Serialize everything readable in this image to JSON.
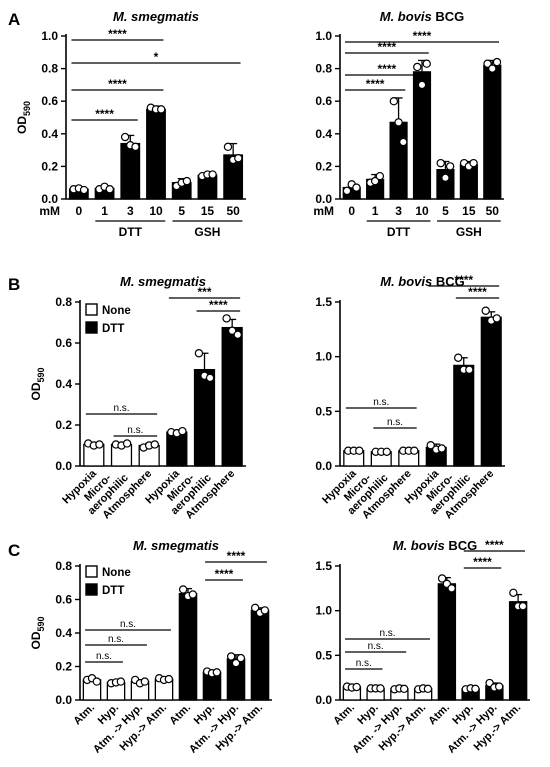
{
  "figure": {
    "panel_letters": [
      "A",
      "B",
      "C"
    ],
    "ylabel": "OD",
    "ylabel_sub": "590",
    "legend": {
      "none": "None",
      "dtt": "DTT"
    },
    "dose_unit": "mM"
  },
  "chart_data": [
    {
      "type": "bar",
      "panel": "A",
      "title_species": "M. smegmatis",
      "title_suffix": "",
      "categories": [
        "0",
        "1",
        "3",
        "10",
        "5",
        "15",
        "50"
      ],
      "groups": [
        {
          "label": "DTT",
          "indices": [
            1,
            2,
            3
          ]
        },
        {
          "label": "GSH",
          "indices": [
            4,
            5,
            6
          ]
        }
      ],
      "values": [
        0.06,
        0.065,
        0.34,
        0.55,
        0.1,
        0.145,
        0.27
      ],
      "errors": [
        0.01,
        0.015,
        0.05,
        0.02,
        0.025,
        0.01,
        0.07
      ],
      "points": [
        [
          0.06,
          0.065,
          0.055
        ],
        [
          0.06,
          0.075,
          0.06
        ],
        [
          0.38,
          0.33,
          0.32
        ],
        [
          0.56,
          0.55,
          0.55
        ],
        [
          0.08,
          0.1,
          0.11
        ],
        [
          0.14,
          0.15,
          0.15
        ],
        [
          0.32,
          0.24,
          0.25
        ]
      ],
      "fills": [
        "black",
        "black",
        "black",
        "black",
        "black",
        "black",
        "black"
      ],
      "ylim": [
        0,
        1.0
      ],
      "yticks": [
        "0.0",
        "0.2",
        "0.4",
        "0.6",
        "0.8",
        "1.0"
      ],
      "ytick_values": [
        0,
        0.2,
        0.4,
        0.6,
        0.8,
        1.0
      ],
      "significance": [
        {
          "from": 0,
          "to": 3,
          "label": "****"
        },
        {
          "from": 0,
          "to": 6,
          "label": "*"
        },
        {
          "from": 0,
          "to": 3,
          "label": "****"
        },
        {
          "from": 0,
          "to": 2,
          "label": "****"
        }
      ]
    },
    {
      "type": "bar",
      "panel": "A",
      "title_species": "M. bovis",
      "title_suffix": " BCG",
      "categories": [
        "0",
        "1",
        "3",
        "10",
        "5",
        "15",
        "50"
      ],
      "groups": [
        {
          "label": "DTT",
          "indices": [
            1,
            2,
            3
          ]
        },
        {
          "label": "GSH",
          "indices": [
            4,
            5,
            6
          ]
        }
      ],
      "values": [
        0.07,
        0.12,
        0.47,
        0.78,
        0.18,
        0.21,
        0.82
      ],
      "errors": [
        0.02,
        0.03,
        0.15,
        0.07,
        0.05,
        0.02,
        0.03
      ],
      "points": [
        [
          0.05,
          0.09,
          0.07
        ],
        [
          0.1,
          0.11,
          0.14
        ],
        [
          0.6,
          0.47,
          0.35
        ],
        [
          0.81,
          0.7,
          0.83
        ],
        [
          0.22,
          0.13,
          0.2
        ],
        [
          0.22,
          0.2,
          0.22
        ],
        [
          0.83,
          0.8,
          0.84
        ]
      ],
      "fills": [
        "black",
        "black",
        "black",
        "black",
        "black",
        "black",
        "black"
      ],
      "ylim": [
        0,
        1.0
      ],
      "yticks": [
        "0.0",
        "0.2",
        "0.4",
        "0.6",
        "0.8",
        "1.0"
      ],
      "ytick_values": [
        0,
        0.2,
        0.4,
        0.6,
        0.8,
        1.0
      ],
      "significance": [
        {
          "from": 0,
          "to": 6,
          "label": "****"
        },
        {
          "from": 0,
          "to": 3,
          "label": "****"
        },
        {
          "from": 0,
          "to": 3,
          "label": "****"
        },
        {
          "from": 0,
          "to": 2,
          "label": "****"
        }
      ]
    },
    {
      "type": "bar",
      "panel": "B",
      "title_species": "M. smegmatis",
      "title_suffix": "",
      "categories": [
        "Hypoxia",
        "Micro-aerophilic",
        "Atmosphere",
        "Hypoxia",
        "Micro-aerophilic",
        "Atmosphere"
      ],
      "values": [
        0.105,
        0.105,
        0.1,
        0.165,
        0.47,
        0.675
      ],
      "errors": [
        0.01,
        0.005,
        0.01,
        0.01,
        0.08,
        0.04
      ],
      "points": [
        [
          0.11,
          0.1,
          0.105
        ],
        [
          0.105,
          0.1,
          0.11
        ],
        [
          0.09,
          0.1,
          0.105
        ],
        [
          0.165,
          0.16,
          0.17
        ],
        [
          0.55,
          0.44,
          0.43
        ],
        [
          0.72,
          0.66,
          0.64
        ]
      ],
      "fills": [
        "white",
        "white",
        "white",
        "black",
        "black",
        "black"
      ],
      "ylim": [
        0,
        0.8
      ],
      "yticks": [
        "0.0",
        "0.2",
        "0.4",
        "0.6",
        "0.8"
      ],
      "ytick_values": [
        0,
        0.2,
        0.4,
        0.6,
        0.8
      ],
      "significance": [
        {
          "from": 3,
          "to": 5,
          "label": "***"
        },
        {
          "from": 4,
          "to": 5,
          "label": "****"
        },
        {
          "from": 0,
          "to": 2,
          "label": "n.s."
        },
        {
          "from": 1,
          "to": 2,
          "label": "n.s."
        }
      ]
    },
    {
      "type": "bar",
      "panel": "B",
      "title_species": "M. bovis",
      "title_suffix": " BCG",
      "categories": [
        "Hypoxia",
        "Micro-aerophilic",
        "Atmosphere",
        "Hypoxia",
        "Micro-aerophilic",
        "Atmosphere"
      ],
      "values": [
        0.14,
        0.13,
        0.14,
        0.17,
        0.92,
        1.36
      ],
      "errors": [
        0.01,
        0.01,
        0.01,
        0.03,
        0.07,
        0.05
      ],
      "points": [
        [
          0.14,
          0.14,
          0.14
        ],
        [
          0.13,
          0.13,
          0.13
        ],
        [
          0.14,
          0.14,
          0.14
        ],
        [
          0.19,
          0.15,
          0.16
        ],
        [
          0.99,
          0.88,
          0.88
        ],
        [
          1.42,
          1.33,
          1.35
        ]
      ],
      "fills": [
        "white",
        "white",
        "white",
        "black",
        "black",
        "black"
      ],
      "ylim": [
        0,
        1.5
      ],
      "yticks": [
        "0.0",
        "0.5",
        "1.0",
        "1.5"
      ],
      "ytick_values": [
        0,
        0.5,
        1.0,
        1.5
      ],
      "significance": [
        {
          "from": 3,
          "to": 5,
          "label": "****"
        },
        {
          "from": 4,
          "to": 5,
          "label": "****"
        },
        {
          "from": 0,
          "to": 2,
          "label": "n.s."
        },
        {
          "from": 1,
          "to": 2,
          "label": "n.s."
        }
      ]
    },
    {
      "type": "bar",
      "panel": "C",
      "title_species": "M. smegmatis",
      "title_suffix": "",
      "categories": [
        "Atm.",
        "Hyp.",
        "Atm. -> Hyp.",
        "Hyp.-> Atm.",
        "Atm.",
        "Hyp.",
        "Atm. -> Hyp.",
        "Hyp.-> Atm."
      ],
      "values": [
        0.12,
        0.105,
        0.11,
        0.125,
        0.635,
        0.165,
        0.245,
        0.535
      ],
      "errors": [
        0.01,
        0.005,
        0.01,
        0.01,
        0.03,
        0.01,
        0.025,
        0.015
      ],
      "points": [
        [
          0.12,
          0.13,
          0.11
        ],
        [
          0.1,
          0.105,
          0.11
        ],
        [
          0.12,
          0.1,
          0.11
        ],
        [
          0.13,
          0.12,
          0.125
        ],
        [
          0.66,
          0.62,
          0.63
        ],
        [
          0.17,
          0.16,
          0.165
        ],
        [
          0.26,
          0.22,
          0.25
        ],
        [
          0.55,
          0.52,
          0.535
        ]
      ],
      "fills": [
        "white",
        "white",
        "white",
        "white",
        "black",
        "black",
        "black",
        "black"
      ],
      "ylim": [
        0,
        0.8
      ],
      "yticks": [
        "0.0",
        "0.2",
        "0.4",
        "0.6",
        "0.8"
      ],
      "ytick_values": [
        0,
        0.2,
        0.4,
        0.6,
        0.8
      ],
      "significance": [
        {
          "from": 5,
          "to": 7,
          "label": "****"
        },
        {
          "from": 5,
          "to": 6,
          "label": "****"
        },
        {
          "from": 0,
          "to": 3,
          "label": "n.s."
        },
        {
          "from": 0,
          "to": 2,
          "label": "n.s."
        },
        {
          "from": 0,
          "to": 1,
          "label": "n.s."
        }
      ]
    },
    {
      "type": "bar",
      "panel": "C",
      "title_species": "M. bovis",
      "title_suffix": " BCG",
      "categories": [
        "Atm.",
        "Hyp.",
        "Atm. -> Hyp.",
        "Hyp.-> Atm.",
        "Atm.",
        "Hyp.",
        "Atm. -> Hyp.",
        "Hyp.-> Atm."
      ],
      "values": [
        0.145,
        0.13,
        0.125,
        0.125,
        1.3,
        0.125,
        0.16,
        1.1
      ],
      "errors": [
        0.01,
        0.01,
        0.01,
        0.01,
        0.07,
        0.01,
        0.03,
        0.08
      ],
      "points": [
        [
          0.15,
          0.14,
          0.145
        ],
        [
          0.13,
          0.13,
          0.13
        ],
        [
          0.12,
          0.13,
          0.125
        ],
        [
          0.12,
          0.13,
          0.125
        ],
        [
          1.36,
          1.3,
          1.25
        ],
        [
          0.12,
          0.13,
          0.125
        ],
        [
          0.19,
          0.14,
          0.15
        ],
        [
          1.2,
          1.05,
          1.05
        ]
      ],
      "fills": [
        "white",
        "white",
        "white",
        "white",
        "black",
        "black",
        "black",
        "black"
      ],
      "ylim": [
        0,
        1.5
      ],
      "yticks": [
        "0.0",
        "0.5",
        "1.0",
        "1.5"
      ],
      "ytick_values": [
        0,
        0.5,
        1.0,
        1.5
      ],
      "significance": [
        {
          "from": 5,
          "to": 7,
          "label": "****"
        },
        {
          "from": 5,
          "to": 6,
          "label": "****"
        },
        {
          "from": 0,
          "to": 3,
          "label": "n.s."
        },
        {
          "from": 0,
          "to": 2,
          "label": "n.s."
        },
        {
          "from": 0,
          "to": 1,
          "label": "n.s."
        }
      ]
    }
  ]
}
